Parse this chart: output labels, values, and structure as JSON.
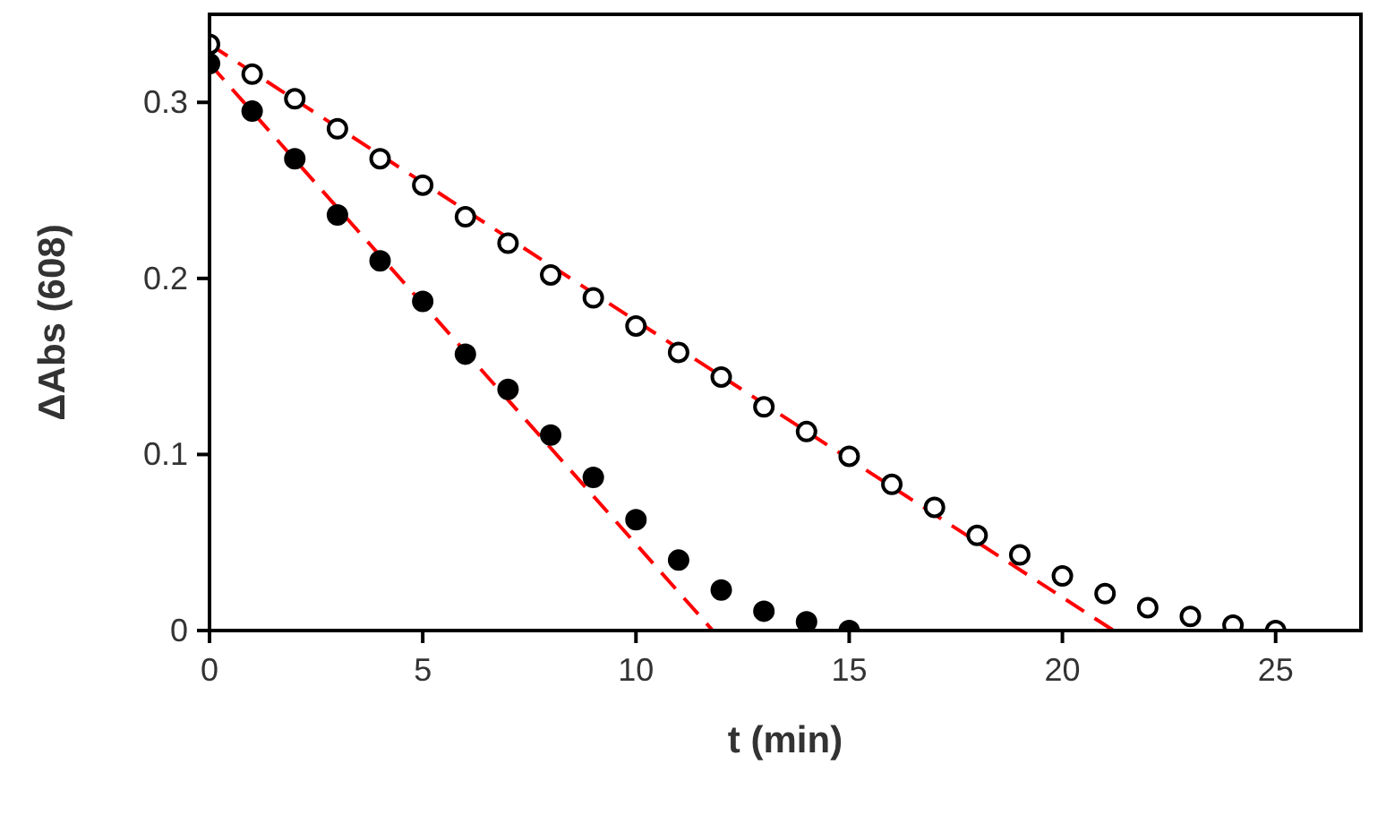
{
  "chart_data": {
    "type": "scatter",
    "xlabel": "t (min)",
    "ylabel": "ΔAbs (608)",
    "xlim": [
      0,
      27
    ],
    "ylim": [
      0,
      0.35
    ],
    "xticks": [
      0,
      5,
      10,
      15,
      20,
      25
    ],
    "yticks": [
      0,
      0.1,
      0.2,
      0.3
    ],
    "grid": false,
    "series": [
      {
        "color": "#ffffff",
        "marker": "circle",
        "x": [
          0,
          1,
          2,
          3,
          4,
          5,
          6,
          7,
          8,
          9,
          10,
          11,
          12,
          13,
          14,
          15,
          16,
          17,
          18,
          19,
          20,
          21,
          22,
          23,
          24,
          25
        ],
        "values": [
          0.333,
          0.316,
          0.302,
          0.285,
          0.268,
          0.253,
          0.235,
          0.22,
          0.202,
          0.189,
          0.173,
          0.158,
          0.144,
          0.127,
          0.113,
          0.099,
          0.083,
          0.07,
          0.054,
          0.043,
          0.031,
          0.021,
          0.013,
          0.008,
          0.003,
          0.0
        ]
      },
      {
        "color": "#000000",
        "marker": "circle",
        "x": [
          0,
          1,
          2,
          3,
          4,
          5,
          6,
          7,
          8,
          9,
          10,
          11,
          12,
          13,
          14,
          15
        ],
        "values": [
          0.322,
          0.295,
          0.268,
          0.236,
          0.21,
          0.187,
          0.157,
          0.137,
          0.111,
          0.087,
          0.063,
          0.04,
          0.023,
          0.011,
          0.005,
          0.0
        ]
      },
      {
        "type": "line",
        "color": "#ff0000",
        "line_style": "dashed",
        "x": [
          0,
          21.2
        ],
        "values": [
          0.333,
          0
        ]
      },
      {
        "type": "line",
        "color": "#ff0000",
        "line_style": "dashed",
        "x": [
          0,
          11.8
        ],
        "values": [
          0.322,
          0
        ]
      }
    ]
  }
}
